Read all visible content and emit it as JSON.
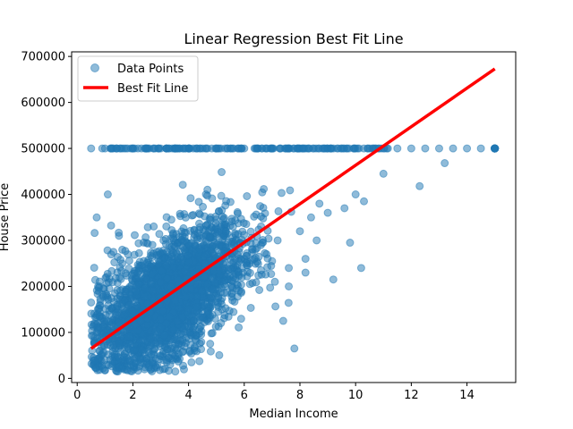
{
  "chart_data": {
    "type": "scatter",
    "title": "Linear Regression Best Fit Line",
    "xlabel": "Median Income",
    "ylabel": "House Price",
    "xlim": [
      -0.2,
      15.75
    ],
    "ylim": [
      -9000,
      710000
    ],
    "x_ticks": [
      0,
      2,
      4,
      6,
      8,
      10,
      12,
      14
    ],
    "x_tick_labels": [
      "0",
      "2",
      "4",
      "6",
      "8",
      "10",
      "12",
      "14"
    ],
    "y_ticks": [
      0,
      100000,
      200000,
      300000,
      400000,
      500000,
      600000,
      700000
    ],
    "y_tick_labels": [
      "0",
      "100000",
      "200000",
      "300000",
      "400000",
      "500000",
      "600000",
      "700000"
    ],
    "grid": false,
    "legend_position": "top-left",
    "legend": {
      "entries": [
        "Data Points",
        "Best Fit Line"
      ]
    },
    "series": [
      {
        "name": "Data Points",
        "kind": "scatter",
        "color": "#1f77b4",
        "alpha": 0.5,
        "x": [
          0.5,
          0.9,
          1.0,
          1.2,
          1.4,
          2.0,
          2.5,
          2.8,
          3.0,
          3.2,
          3.5,
          3.8,
          4.0,
          4.3,
          4.6,
          5.0,
          5.5,
          6.0,
          6.5,
          7.0,
          7.5,
          8.0,
          8.5,
          9.0,
          9.5,
          10.0,
          10.5,
          11.0,
          11.5,
          12.0,
          12.5,
          13.0,
          13.5,
          14.0,
          14.5,
          15.0,
          0.5,
          0.7,
          0.8,
          1.0,
          1.1,
          1.3,
          1.5,
          1.7,
          1.9,
          2.1,
          2.3,
          2.6,
          2.9,
          3.1,
          3.4,
          3.7,
          4.1,
          4.4,
          4.8,
          5.2,
          5.6,
          6.1,
          6.6,
          7.1,
          7.6,
          8.2,
          8.7,
          9.2,
          9.8,
          10.2,
          11.0,
          12.3,
          13.2,
          0.8,
          1.2,
          1.6,
          2.0,
          2.4,
          2.8,
          3.2,
          3.6,
          4.0,
          4.4,
          4.8,
          5.2,
          5.6,
          6.0,
          6.4,
          6.8,
          7.2,
          7.6,
          8.0,
          8.4,
          9.0,
          9.6,
          10.0,
          10.3,
          1.0,
          1.4,
          1.8,
          2.2,
          2.6,
          3.0,
          3.4,
          3.8,
          4.2,
          4.6,
          5.0,
          5.4,
          5.8,
          6.2,
          6.6,
          7.0,
          7.4,
          7.8,
          8.2,
          8.6
        ],
        "y": [
          500000,
          500000,
          500000,
          500000,
          500000,
          500000,
          500000,
          500000,
          500000,
          500000,
          500000,
          500000,
          500000,
          500000,
          500000,
          500000,
          500000,
          500000,
          500000,
          500000,
          500000,
          500000,
          500000,
          500000,
          500000,
          500000,
          500000,
          500000,
          500000,
          500000,
          500000,
          500000,
          500000,
          500000,
          500000,
          500000,
          165000,
          350000,
          200000,
          120000,
          400000,
          275000,
          310000,
          180000,
          100000,
          60000,
          150000,
          90000,
          240000,
          300000,
          170000,
          260000,
          200000,
          310000,
          230000,
          220000,
          330000,
          250000,
          290000,
          210000,
          200000,
          260000,
          380000,
          215000,
          295000,
          240000,
          445000,
          418000,
          468000,
          60000,
          100000,
          80000,
          90000,
          130000,
          140000,
          160000,
          150000,
          180000,
          190000,
          200000,
          230000,
          240000,
          260000,
          280000,
          270000,
          300000,
          240000,
          320000,
          350000,
          360000,
          370000,
          400000,
          385000,
          40000,
          70000,
          85000,
          110000,
          120000,
          155000,
          135000,
          175000,
          165000,
          205000,
          185000,
          215000,
          225000,
          250000,
          235000,
          255000,
          125000,
          65000,
          230000,
          300000
        ]
      },
      {
        "name": "Best Fit Line",
        "kind": "line",
        "color": "#ff0000",
        "x": [
          0.5,
          15.0
        ],
        "y": [
          65000,
          673000
        ]
      }
    ]
  }
}
